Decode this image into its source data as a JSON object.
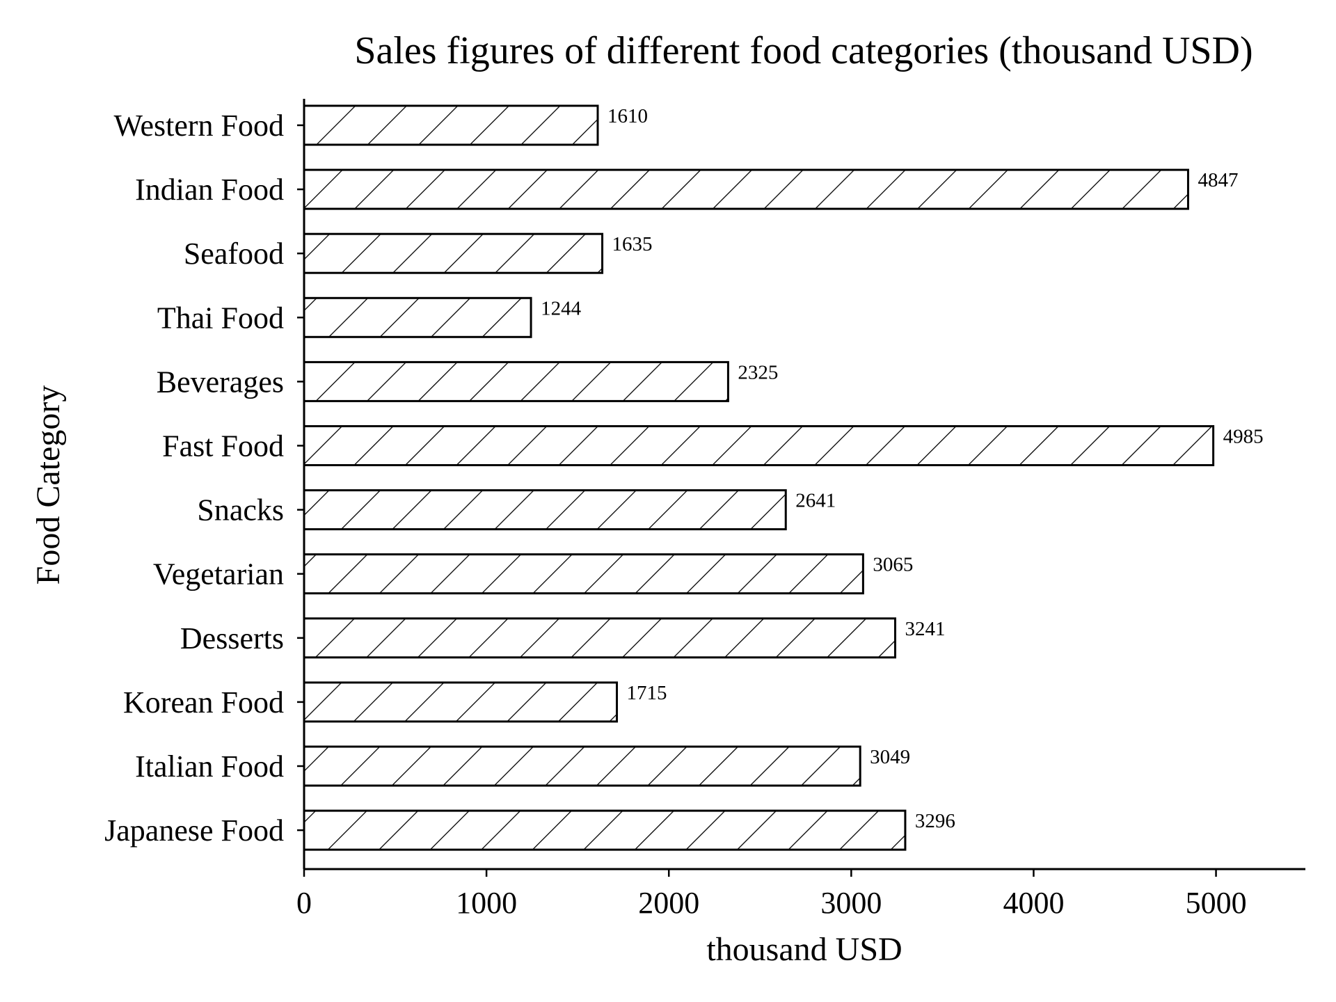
{
  "chart_data": {
    "type": "bar",
    "orientation": "horizontal",
    "title": "Sales figures of different food categories (thousand USD)",
    "xlabel": "thousand USD",
    "ylabel": "Food Category",
    "categories": [
      "Western Food",
      "Indian Food",
      "Seafood",
      "Thai Food",
      "Beverages",
      "Fast Food",
      "Snacks",
      "Vegetarian",
      "Desserts",
      "Korean Food",
      "Italian Food",
      "Japanese Food"
    ],
    "values": [
      1610,
      4847,
      1635,
      1244,
      2325,
      4985,
      2641,
      3065,
      3241,
      1715,
      3049,
      3296
    ],
    "value_labels": [
      "1610",
      "4847",
      "1635",
      "1244",
      "2325",
      "4985",
      "2641",
      "3065",
      "3241",
      "1715",
      "3049",
      "3296"
    ],
    "xlim": [
      0,
      5490
    ],
    "xticks": [
      0,
      1000,
      2000,
      3000,
      4000,
      5000
    ],
    "xtick_labels": [
      "0",
      "1000",
      "2000",
      "3000",
      "4000",
      "5000"
    ],
    "bar_fill": "#ffffff",
    "bar_edge": "#000000",
    "hatch": "diagonal",
    "grid": false,
    "legend": "none"
  }
}
